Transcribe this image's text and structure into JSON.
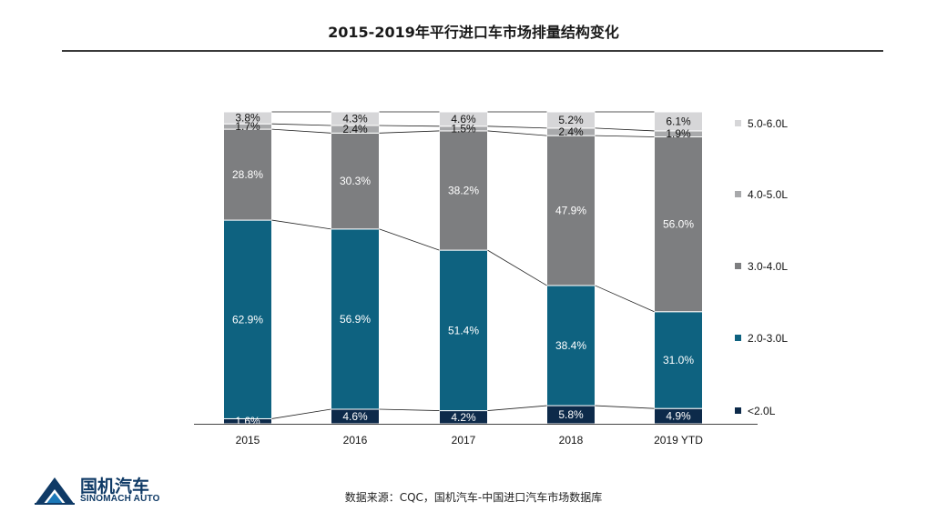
{
  "header": {
    "title": "2015-2019年平行进口车市场排量结构变化"
  },
  "footer": {
    "logo_cn": "国机汽车",
    "logo_en": "SINOMACH AUTO",
    "source": "数据来源：CQC，国机汽车-中国进口汽车市场数据库"
  },
  "chart_data": {
    "type": "bar",
    "stacked": true,
    "percent_stacked": true,
    "title": "2015-2019年平行进口车市场排量结构变化",
    "categories": [
      "2015",
      "2016",
      "2017",
      "2018",
      "2019 YTD"
    ],
    "series": [
      {
        "name": "<2.0L",
        "color": "#0d2a4a",
        "labelColor": "#ffffff",
        "values": [
          1.6,
          4.6,
          4.2,
          5.8,
          4.9
        ],
        "labels": [
          "1.6%",
          "4.6%",
          "4.2%",
          "5.8%",
          "4.9%"
        ]
      },
      {
        "name": "2.0-3.0L",
        "color": "#0e6280",
        "labelColor": "#ffffff",
        "values": [
          62.9,
          56.9,
          51.4,
          38.4,
          31.0
        ],
        "labels": [
          "62.9%",
          "56.9%",
          "51.4%",
          "38.4%",
          "31.0%"
        ]
      },
      {
        "name": "3.0-4.0L",
        "color": "#7d7e80",
        "labelColor": "#ffffff",
        "values": [
          28.8,
          30.3,
          38.2,
          47.9,
          56.0
        ],
        "labels": [
          "28.8%",
          "30.3%",
          "38.2%",
          "47.9%",
          "56.0%"
        ]
      },
      {
        "name": "4.0-5.0L",
        "color": "#a8a9ab",
        "labelColor": "#111111",
        "values": [
          1.7,
          2.4,
          1.5,
          2.4,
          1.9
        ],
        "labels": [
          "1.7%",
          "2.4%",
          "1.5%",
          "2.4%",
          "1.9%"
        ]
      },
      {
        "name": "5.0-6.0L",
        "color": "#d6d6d8",
        "labelColor": "#111111",
        "values": [
          3.8,
          4.3,
          4.6,
          5.2,
          6.1
        ],
        "labels": [
          "3.8%",
          "4.3%",
          "4.6%",
          "5.2%",
          "6.1%"
        ]
      }
    ],
    "legend_position": "right",
    "series_lines": true,
    "ylim": [
      0,
      100
    ],
    "xlabel": "",
    "ylabel": ""
  }
}
